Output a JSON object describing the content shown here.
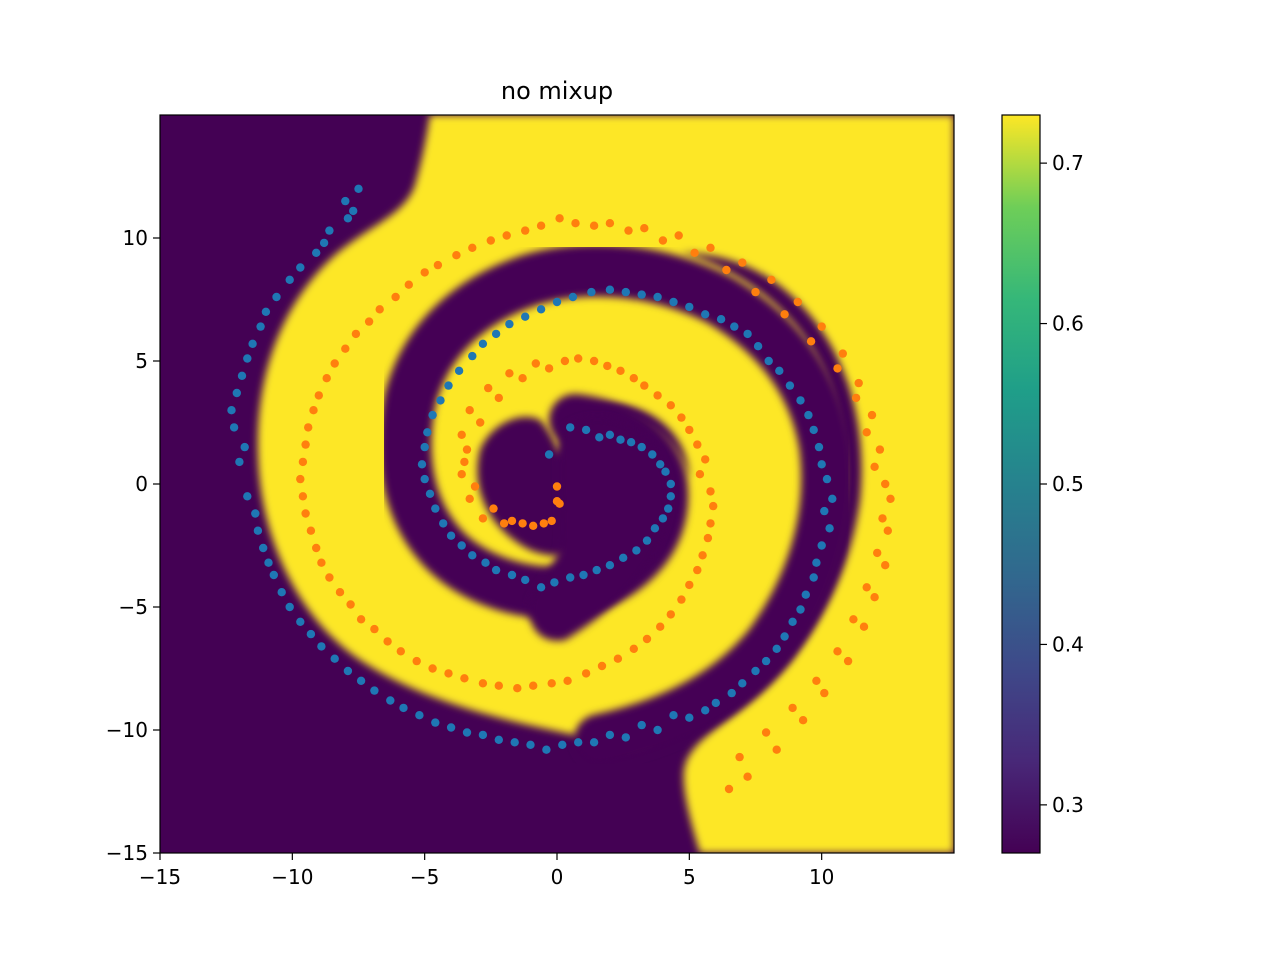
{
  "chart_data": {
    "type": "scatter",
    "title": "no mixup",
    "xlabel": "",
    "ylabel": "",
    "xlim": [
      -15,
      15
    ],
    "ylim": [
      -15,
      15
    ],
    "x_ticks": [
      -15,
      -10,
      -5,
      0,
      5,
      10
    ],
    "x_tick_labels": [
      "−15",
      "−10",
      "−5",
      "0",
      "5",
      "10"
    ],
    "y_ticks": [
      -15,
      -10,
      -5,
      0,
      5,
      10
    ],
    "y_tick_labels": [
      "−15",
      "−10",
      "−5",
      "0",
      "5",
      "10"
    ],
    "grid": false,
    "background": {
      "type": "heatmap",
      "description": "decision surface of classifier; yellow region follows the orange spiral arm, dark purple follows the blue arm",
      "colormap": "viridis",
      "vmin": 0.27,
      "vmax": 0.73
    },
    "colorbar": {
      "ticks": [
        0.3,
        0.4,
        0.5,
        0.6,
        0.7
      ],
      "tick_labels": [
        "0.3",
        "0.4",
        "0.5",
        "0.6",
        "0.7"
      ],
      "range": [
        0.27,
        0.73
      ]
    },
    "series": [
      {
        "color": "#1f77b4",
        "points": [
          [
            1.6,
            1.9
          ],
          [
            2.4,
            1.8
          ],
          [
            3.2,
            1.5
          ],
          [
            3.9,
            0.8
          ],
          [
            4.3,
            0.0
          ],
          [
            4.2,
            -1.0
          ],
          [
            3.7,
            -1.8
          ],
          [
            3.0,
            -2.7
          ],
          [
            2.0,
            -3.3
          ],
          [
            1.0,
            -3.7
          ],
          [
            -0.1,
            -4.0
          ],
          [
            -1.2,
            -3.9
          ],
          [
            -2.3,
            -3.5
          ],
          [
            -3.2,
            -2.9
          ],
          [
            -4.0,
            -2.1
          ],
          [
            -4.6,
            -1.0
          ],
          [
            -5.0,
            0.2
          ],
          [
            -5.0,
            1.5
          ],
          [
            -4.7,
            2.8
          ],
          [
            -4.1,
            4.0
          ],
          [
            -3.2,
            5.2
          ],
          [
            -2.3,
            6.1
          ],
          [
            -1.2,
            6.8
          ],
          [
            0.0,
            7.4
          ],
          [
            1.3,
            7.8
          ],
          [
            2.6,
            7.8
          ],
          [
            3.8,
            7.6
          ],
          [
            5.0,
            7.2
          ],
          [
            6.2,
            6.7
          ],
          [
            7.2,
            6.1
          ],
          [
            8.0,
            5.0
          ],
          [
            8.8,
            4.0
          ],
          [
            9.5,
            2.8
          ],
          [
            9.9,
            1.5
          ],
          [
            10.2,
            0.2
          ],
          [
            10.1,
            -1.1
          ],
          [
            10.0,
            -2.5
          ],
          [
            9.7,
            -3.8
          ],
          [
            9.2,
            -5.1
          ],
          [
            8.6,
            -6.2
          ],
          [
            7.9,
            -7.2
          ],
          [
            7.0,
            -8.1
          ],
          [
            6.0,
            -8.9
          ],
          [
            5.0,
            -9.5
          ],
          [
            3.8,
            -10.0
          ],
          [
            2.6,
            -10.3
          ],
          [
            1.4,
            -10.5
          ],
          [
            0.2,
            -10.6
          ],
          [
            -1.0,
            -10.6
          ],
          [
            -2.2,
            -10.4
          ],
          [
            -3.4,
            -10.1
          ],
          [
            -4.6,
            -9.7
          ],
          [
            -5.8,
            -9.1
          ],
          [
            -6.9,
            -8.4
          ],
          [
            -7.9,
            -7.6
          ],
          [
            -8.9,
            -6.6
          ],
          [
            -9.7,
            -5.6
          ],
          [
            -10.4,
            -4.4
          ],
          [
            -10.9,
            -3.2
          ],
          [
            -11.3,
            -1.9
          ],
          [
            -11.7,
            -0.5
          ],
          [
            -12.0,
            0.9
          ],
          [
            -12.2,
            2.3
          ],
          [
            -12.1,
            3.7
          ],
          [
            -11.7,
            5.1
          ],
          [
            -11.2,
            6.4
          ],
          [
            -10.6,
            7.6
          ],
          [
            -9.7,
            8.8
          ],
          [
            -8.8,
            9.8
          ],
          [
            -7.9,
            10.8
          ],
          [
            -7.5,
            12.0
          ],
          [
            -8.0,
            11.5
          ],
          [
            -7.7,
            11.1
          ],
          [
            -8.6,
            10.3
          ],
          [
            -9.1,
            9.4
          ],
          [
            -10.1,
            8.3
          ],
          [
            -11.0,
            7.0
          ],
          [
            -11.5,
            5.7
          ],
          [
            -11.9,
            4.4
          ],
          [
            -12.3,
            3.0
          ],
          [
            -11.8,
            1.5
          ],
          [
            -11.4,
            -1.2
          ],
          [
            -11.1,
            -2.6
          ],
          [
            -10.7,
            -3.7
          ],
          [
            -10.1,
            -5.0
          ],
          [
            -9.3,
            -6.1
          ],
          [
            -8.4,
            -7.1
          ],
          [
            -7.4,
            -8.0
          ],
          [
            -6.3,
            -8.8
          ],
          [
            -5.2,
            -9.4
          ],
          [
            -4.0,
            -9.9
          ],
          [
            -2.8,
            -10.2
          ],
          [
            -1.6,
            -10.5
          ],
          [
            -0.4,
            -10.8
          ],
          [
            0.8,
            -10.5
          ],
          [
            2.0,
            -10.2
          ],
          [
            3.2,
            -9.8
          ],
          [
            4.4,
            -9.4
          ],
          [
            5.6,
            -9.2
          ],
          [
            6.6,
            -8.5
          ],
          [
            7.5,
            -7.6
          ],
          [
            8.3,
            -6.7
          ],
          [
            8.9,
            -5.6
          ],
          [
            9.4,
            -4.5
          ],
          [
            9.8,
            -3.2
          ],
          [
            10.3,
            -1.8
          ],
          [
            10.4,
            -0.6
          ],
          [
            10.0,
            0.8
          ],
          [
            9.7,
            2.2
          ],
          [
            9.2,
            3.4
          ],
          [
            8.4,
            4.6
          ],
          [
            7.6,
            5.6
          ],
          [
            6.7,
            6.4
          ],
          [
            5.6,
            6.9
          ],
          [
            4.4,
            7.4
          ],
          [
            3.2,
            7.7
          ],
          [
            2.0,
            7.9
          ],
          [
            0.6,
            7.6
          ],
          [
            -0.6,
            7.1
          ],
          [
            -1.8,
            6.5
          ],
          [
            -2.8,
            5.7
          ],
          [
            -3.7,
            4.6
          ],
          [
            -4.4,
            3.4
          ],
          [
            -4.9,
            2.1
          ],
          [
            -5.1,
            0.8
          ],
          [
            -4.8,
            -0.4
          ],
          [
            -4.3,
            -1.6
          ],
          [
            -3.6,
            -2.5
          ],
          [
            -2.7,
            -3.2
          ],
          [
            -1.7,
            -3.7
          ],
          [
            -0.6,
            -4.2
          ],
          [
            0.5,
            -3.8
          ],
          [
            1.5,
            -3.5
          ],
          [
            2.5,
            -3.0
          ],
          [
            3.4,
            -2.3
          ],
          [
            4.0,
            -1.4
          ],
          [
            4.3,
            -0.5
          ],
          [
            4.1,
            0.5
          ],
          [
            3.6,
            1.2
          ],
          [
            2.8,
            1.7
          ],
          [
            2.0,
            2.0
          ],
          [
            1.1,
            2.2
          ],
          [
            0.5,
            2.3
          ],
          [
            -0.3,
            1.2
          ]
        ]
      },
      {
        "color": "#ff7f0e",
        "points": [
          [
            0.0,
            -0.1
          ],
          [
            0.1,
            -0.8
          ],
          [
            -0.2,
            -1.5
          ],
          [
            -0.9,
            -1.7
          ],
          [
            -1.7,
            -1.5
          ],
          [
            -2.4,
            -1.0
          ],
          [
            -3.1,
            -0.1
          ],
          [
            -3.5,
            0.9
          ],
          [
            -3.6,
            2.0
          ],
          [
            -3.3,
            3.0
          ],
          [
            -2.6,
            3.9
          ],
          [
            -1.8,
            4.5
          ],
          [
            -0.8,
            4.9
          ],
          [
            0.3,
            5.0
          ],
          [
            1.4,
            5.0
          ],
          [
            2.4,
            4.6
          ],
          [
            3.3,
            4.0
          ],
          [
            4.3,
            3.2
          ],
          [
            5.0,
            2.2
          ],
          [
            5.6,
            1.0
          ],
          [
            5.8,
            -0.3
          ],
          [
            5.8,
            -1.6
          ],
          [
            5.5,
            -2.9
          ],
          [
            5.0,
            -4.1
          ],
          [
            4.3,
            -5.3
          ],
          [
            3.4,
            -6.3
          ],
          [
            2.3,
            -7.1
          ],
          [
            1.1,
            -7.7
          ],
          [
            -0.2,
            -8.1
          ],
          [
            -1.5,
            -8.3
          ],
          [
            -2.8,
            -8.1
          ],
          [
            -4.1,
            -7.7
          ],
          [
            -5.3,
            -7.2
          ],
          [
            -6.4,
            -6.4
          ],
          [
            -7.4,
            -5.5
          ],
          [
            -8.2,
            -4.4
          ],
          [
            -8.9,
            -3.2
          ],
          [
            -9.3,
            -1.9
          ],
          [
            -9.6,
            -0.5
          ],
          [
            -9.6,
            0.9
          ],
          [
            -9.4,
            2.3
          ],
          [
            -9.0,
            3.6
          ],
          [
            -8.4,
            4.9
          ],
          [
            -7.6,
            6.1
          ],
          [
            -6.7,
            7.1
          ],
          [
            -5.6,
            8.1
          ],
          [
            -4.5,
            8.9
          ],
          [
            -3.2,
            9.6
          ],
          [
            -1.9,
            10.1
          ],
          [
            -0.6,
            10.5
          ],
          [
            0.7,
            10.6
          ],
          [
            2.0,
            10.6
          ],
          [
            3.3,
            10.4
          ],
          [
            4.6,
            10.1
          ],
          [
            5.8,
            9.6
          ],
          [
            7.0,
            9.0
          ],
          [
            8.1,
            8.3
          ],
          [
            9.1,
            7.4
          ],
          [
            10.0,
            6.4
          ],
          [
            10.8,
            5.3
          ],
          [
            11.4,
            4.1
          ],
          [
            11.9,
            2.8
          ],
          [
            12.2,
            1.4
          ],
          [
            12.4,
            0.0
          ],
          [
            12.3,
            -1.4
          ],
          [
            12.1,
            -2.8
          ],
          [
            11.7,
            -4.2
          ],
          [
            11.2,
            -5.5
          ],
          [
            10.6,
            -6.8
          ],
          [
            9.8,
            -8.0
          ],
          [
            8.9,
            -9.1
          ],
          [
            7.9,
            -10.1
          ],
          [
            6.9,
            -11.1
          ],
          [
            6.5,
            -12.4
          ],
          [
            7.2,
            -11.9
          ],
          [
            8.3,
            -10.8
          ],
          [
            9.3,
            -9.6
          ],
          [
            10.1,
            -8.5
          ],
          [
            11.0,
            -7.2
          ],
          [
            11.6,
            -5.8
          ],
          [
            12.0,
            -4.6
          ],
          [
            12.4,
            -3.3
          ],
          [
            12.5,
            -1.9
          ],
          [
            12.6,
            -0.6
          ],
          [
            12.0,
            0.7
          ],
          [
            11.7,
            2.1
          ],
          [
            11.3,
            3.5
          ],
          [
            10.6,
            4.7
          ],
          [
            9.6,
            5.8
          ],
          [
            8.6,
            6.9
          ],
          [
            7.5,
            7.8
          ],
          [
            6.4,
            8.7
          ],
          [
            5.2,
            9.4
          ],
          [
            4.0,
            9.9
          ],
          [
            2.7,
            10.3
          ],
          [
            1.4,
            10.5
          ],
          [
            0.1,
            10.8
          ],
          [
            -1.2,
            10.3
          ],
          [
            -2.5,
            9.9
          ],
          [
            -3.8,
            9.3
          ],
          [
            -5.0,
            8.6
          ],
          [
            -6.1,
            7.6
          ],
          [
            -7.1,
            6.6
          ],
          [
            -8.0,
            5.5
          ],
          [
            -8.7,
            4.3
          ],
          [
            -9.2,
            3.0
          ],
          [
            -9.5,
            1.6
          ],
          [
            -9.7,
            0.2
          ],
          [
            -9.5,
            -1.2
          ],
          [
            -9.1,
            -2.6
          ],
          [
            -8.6,
            -3.8
          ],
          [
            -7.8,
            -4.9
          ],
          [
            -6.9,
            -5.9
          ],
          [
            -5.9,
            -6.8
          ],
          [
            -4.7,
            -7.5
          ],
          [
            -3.5,
            -7.9
          ],
          [
            -2.2,
            -8.2
          ],
          [
            -0.9,
            -8.2
          ],
          [
            0.4,
            -8.0
          ],
          [
            1.7,
            -7.4
          ],
          [
            2.9,
            -6.7
          ],
          [
            3.9,
            -5.8
          ],
          [
            4.7,
            -4.7
          ],
          [
            5.3,
            -3.5
          ],
          [
            5.7,
            -2.2
          ],
          [
            5.9,
            -0.9
          ],
          [
            5.4,
            0.4
          ],
          [
            5.3,
            1.6
          ],
          [
            4.7,
            2.7
          ],
          [
            3.8,
            3.6
          ],
          [
            2.9,
            4.3
          ],
          [
            1.9,
            4.8
          ],
          [
            0.8,
            5.1
          ],
          [
            -0.3,
            4.7
          ],
          [
            -1.3,
            4.3
          ],
          [
            -2.2,
            3.5
          ],
          [
            -2.9,
            2.5
          ],
          [
            -3.4,
            1.4
          ],
          [
            -3.6,
            0.4
          ],
          [
            -3.3,
            -0.6
          ],
          [
            -2.8,
            -1.4
          ],
          [
            -2.0,
            -1.6
          ],
          [
            -1.3,
            -1.6
          ],
          [
            -0.5,
            -1.6
          ],
          [
            0.0,
            -0.7
          ]
        ]
      }
    ]
  }
}
